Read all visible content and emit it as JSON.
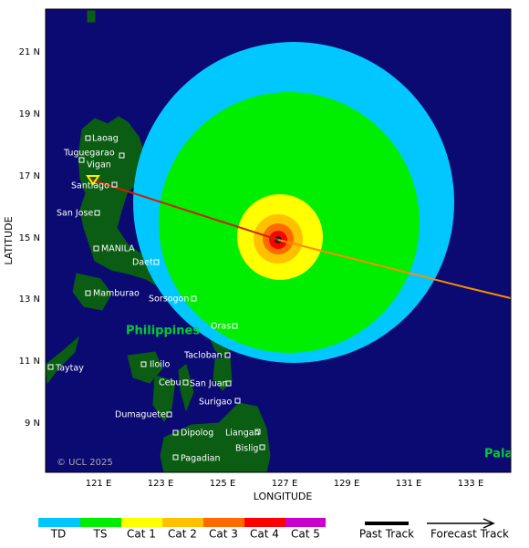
{
  "map": {
    "latitude_ticks": [
      "21 N",
      "19 N",
      "17 N",
      "15 N",
      "13 N",
      "11 N",
      "9 N"
    ],
    "longitude_ticks": [
      "121 E",
      "123 E",
      "125 E",
      "127 E",
      "129 E",
      "131 E",
      "133 E"
    ],
    "x_label": "LONGITUDE",
    "y_label": "LATITUDE",
    "places": [
      "Laoag",
      "Tuguegarao",
      "Vigan",
      "Santiago",
      "San Jose",
      "MANILA",
      "Daet",
      "Mamburao",
      "Sorsogon",
      "Oras",
      "Tacloban",
      "Iloilo",
      "Taytay",
      "Cebu",
      "San Juan",
      "Surigao",
      "Dumaguete",
      "Dipolog",
      "Liangan",
      "Bislig",
      "Pagadian"
    ],
    "region_labels": [
      "Philippines",
      "Pala"
    ],
    "credit": "© UCL 2025"
  },
  "legend": {
    "categories": [
      "TD",
      "TS",
      "Cat 1",
      "Cat 2",
      "Cat 3",
      "Cat 4",
      "Cat 5"
    ],
    "tracks": [
      "Past Track",
      "Forecast Track"
    ]
  }
}
